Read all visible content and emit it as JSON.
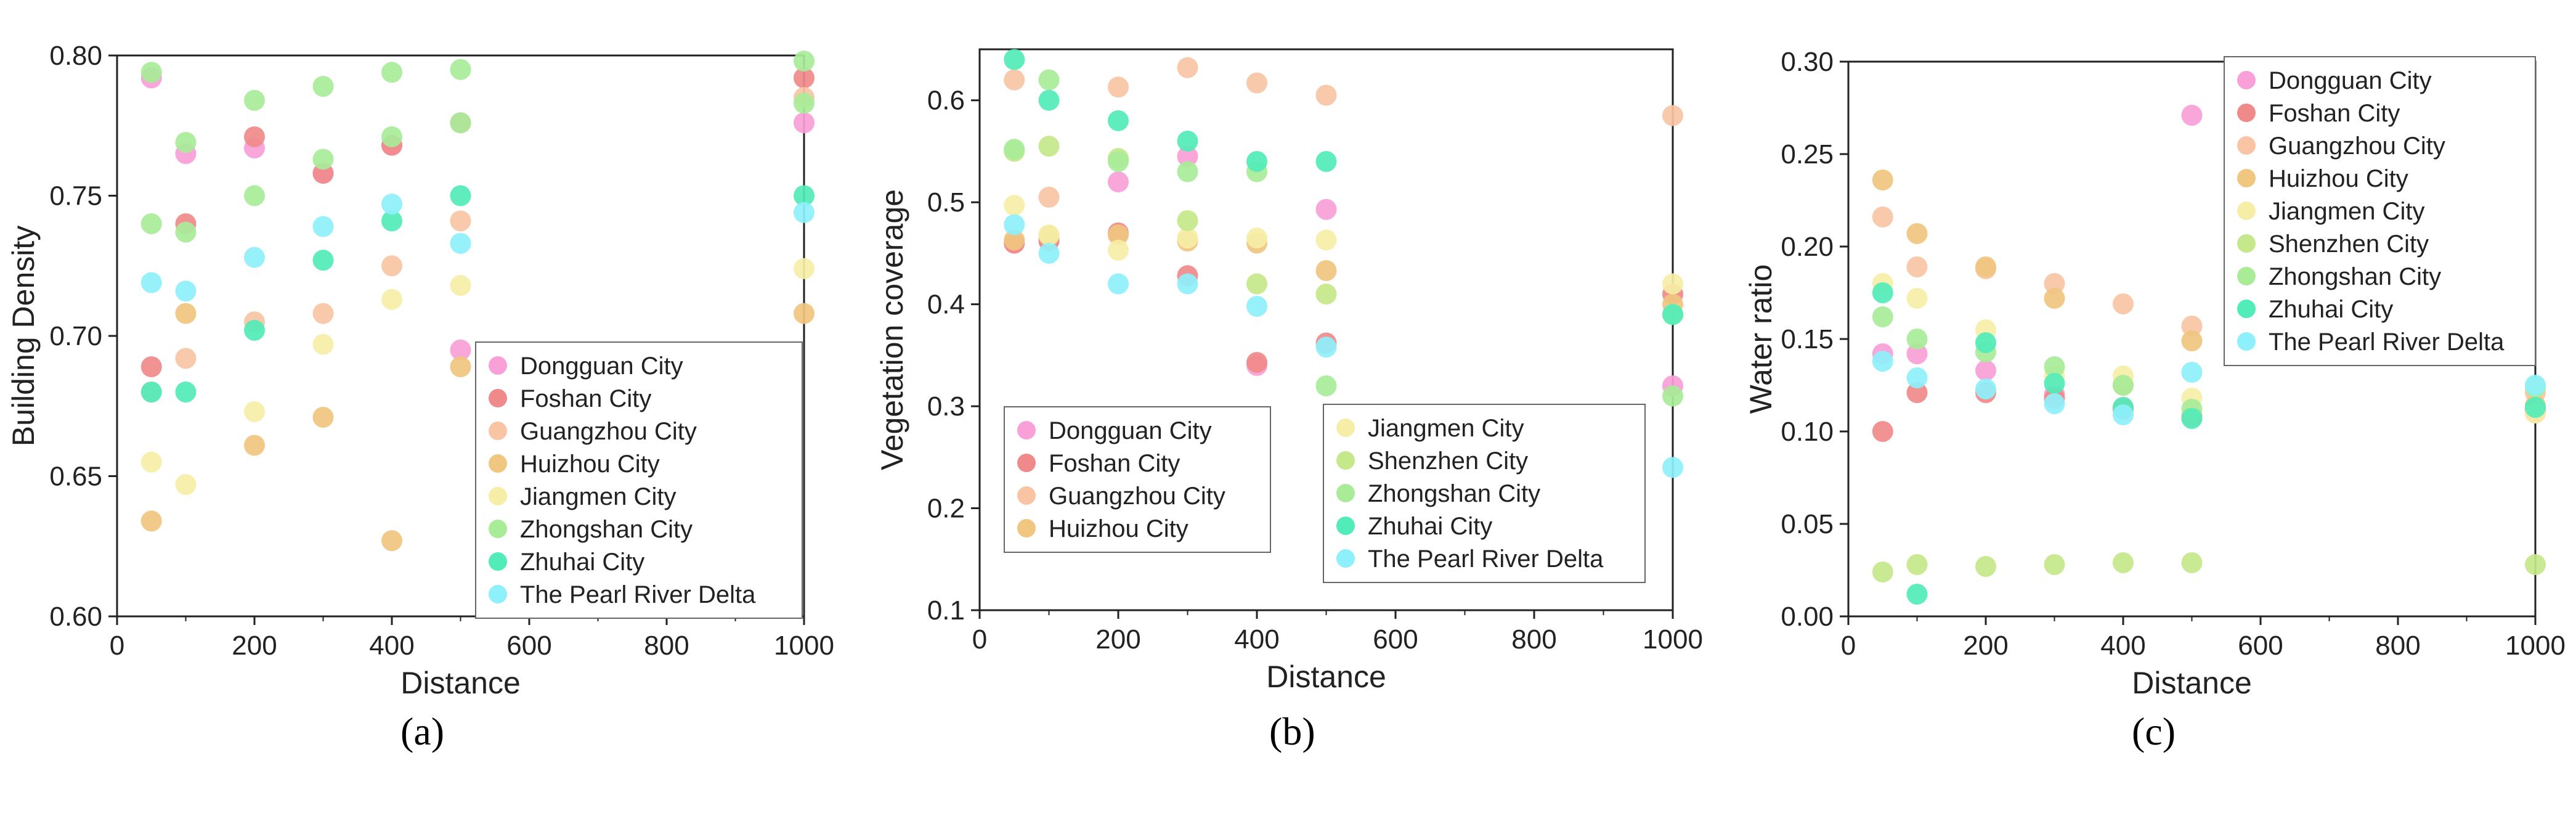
{
  "palette": {
    "Dongguan City": "#f9a0d8",
    "Foshan City": "#f08a8a",
    "Guangzhou City": "#f9c4a4",
    "Huizhou City": "#f0c680",
    "Jiangmen City": "#f6eea6",
    "Shenzhen City": "#c4e88a",
    "Zhongshan City": "#a8ec98",
    "Zhuhai City": "#52ecb8",
    "The Pearl River Delta": "#8ef0fa"
  },
  "chart_data": [
    {
      "id": "a",
      "type": "scatter",
      "caption": "(a)",
      "xlabel": "Distance",
      "ylabel": "Building Density",
      "xlim": [
        0,
        1000
      ],
      "ylim": [
        0.6,
        0.8
      ],
      "xticks": [
        "0",
        "200",
        "400",
        "600",
        "800",
        "1000"
      ],
      "yticks": [
        "0.60",
        "0.65",
        "0.70",
        "0.75",
        "0.80"
      ],
      "x": [
        50,
        100,
        200,
        300,
        400,
        500,
        1000
      ],
      "legend": {
        "position": "lower-right",
        "columns": 1
      },
      "series": [
        {
          "name": "Dongguan City",
          "values": [
            0.792,
            0.765,
            0.767,
            0.758,
            0.768,
            0.695,
            0.776
          ]
        },
        {
          "name": "Foshan City",
          "values": [
            0.689,
            0.74,
            0.771,
            0.758,
            0.768,
            0.776,
            0.792
          ]
        },
        {
          "name": "Guangzhou City",
          "values": [
            0.68,
            0.692,
            0.705,
            0.708,
            0.725,
            0.741,
            0.785
          ]
        },
        {
          "name": "Huizhou City",
          "values": [
            0.634,
            0.708,
            0.661,
            0.671,
            0.627,
            0.689,
            0.708
          ]
        },
        {
          "name": "Jiangmen City",
          "values": [
            0.655,
            0.647,
            0.673,
            0.697,
            0.713,
            0.718,
            0.724
          ]
        },
        {
          "name": "Zhongshan City",
          "values": [
            0.74,
            0.737,
            0.75,
            0.763,
            0.771,
            0.776,
            0.783
          ]
        },
        {
          "name": "Zhuhai City",
          "values": [
            0.68,
            0.68,
            0.702,
            0.727,
            0.741,
            0.75,
            0.75
          ]
        },
        {
          "name": "The Pearl River Delta",
          "values": [
            0.719,
            0.716,
            0.728,
            0.739,
            0.747,
            0.733,
            0.744
          ]
        },
        {
          "name": "Zhongshan City",
          "values": [
            0.794,
            0.769,
            0.784,
            0.789,
            0.794,
            0.795,
            0.798
          ],
          "legend": false
        }
      ]
    },
    {
      "id": "b",
      "type": "scatter",
      "caption": "(b)",
      "xlabel": "Distance",
      "ylabel": "Vegetation coverage",
      "xlim": [
        0,
        1000
      ],
      "ylim": [
        0.1,
        0.65
      ],
      "xticks": [
        "0",
        "200",
        "400",
        "600",
        "800",
        "1000"
      ],
      "yticks": [
        "0.1",
        "0.2",
        "0.3",
        "0.4",
        "0.5",
        "0.6"
      ],
      "x": [
        50,
        100,
        200,
        300,
        400,
        500,
        1000
      ],
      "legend": {
        "position": "lower-center",
        "columns": 2
      },
      "series": [
        {
          "name": "Dongguan City",
          "values": [
            0.46,
            0.463,
            0.52,
            0.545,
            0.34,
            0.493,
            0.32
          ]
        },
        {
          "name": "Foshan City",
          "values": [
            0.46,
            0.462,
            0.47,
            0.428,
            0.343,
            0.362,
            0.41
          ]
        },
        {
          "name": "Guangzhou City",
          "values": [
            0.62,
            0.505,
            0.613,
            0.632,
            0.617,
            0.605,
            0.585
          ]
        },
        {
          "name": "Huizhou City",
          "values": [
            0.463,
            0.467,
            0.468,
            0.462,
            0.46,
            0.433,
            0.4
          ]
        },
        {
          "name": "Jiangmen City",
          "values": [
            0.497,
            0.468,
            0.453,
            0.465,
            0.465,
            0.463,
            0.42
          ]
        },
        {
          "name": "Shenzhen City",
          "values": [
            0.55,
            0.555,
            0.543,
            0.482,
            0.42,
            0.41,
            0.39
          ]
        },
        {
          "name": "Zhongshan City",
          "values": [
            0.552,
            0.62,
            0.54,
            0.53,
            0.53,
            0.32,
            0.31
          ]
        },
        {
          "name": "Zhuhai City",
          "values": [
            0.64,
            0.6,
            0.58,
            0.56,
            0.54,
            0.54,
            0.39
          ]
        },
        {
          "name": "The Pearl River Delta",
          "values": [
            0.478,
            0.45,
            0.42,
            0.42,
            0.398,
            0.358,
            0.24
          ]
        }
      ]
    },
    {
      "id": "c",
      "type": "scatter",
      "caption": "(c)",
      "xlabel": "Distance",
      "ylabel": "Water ratio",
      "xlim": [
        0,
        1000
      ],
      "ylim": [
        0.0,
        0.3
      ],
      "xticks": [
        "0",
        "200",
        "400",
        "600",
        "800",
        "1000"
      ],
      "yticks": [
        "0.00",
        "0.05",
        "0.10",
        "0.15",
        "0.20",
        "0.25",
        "0.30"
      ],
      "x": [
        50,
        100,
        200,
        300,
        400,
        500,
        1000
      ],
      "legend": {
        "position": "top-right",
        "columns": 1
      },
      "series": [
        {
          "name": "Dongguan City",
          "values": [
            0.142,
            0.142,
            0.133,
            0.12,
            0.113,
            0.271,
            0.11
          ]
        },
        {
          "name": "Foshan City",
          "values": [
            0.1,
            0.121,
            0.121,
            0.118,
            0.112,
            0.108,
            0.112
          ]
        },
        {
          "name": "Guangzhou City",
          "values": [
            0.216,
            0.189,
            0.188,
            0.18,
            0.169,
            0.157,
            0.121
          ]
        },
        {
          "name": "Huizhou City",
          "values": [
            0.236,
            0.207,
            0.189,
            0.172,
            0.125,
            0.149,
            0.114
          ]
        },
        {
          "name": "Jiangmen City",
          "values": [
            0.18,
            0.172,
            0.155,
            0.13,
            0.13,
            0.118,
            0.11
          ]
        },
        {
          "name": "Shenzhen City",
          "values": [
            0.024,
            0.028,
            0.027,
            0.028,
            0.029,
            0.029,
            0.028
          ]
        },
        {
          "name": "Zhongshan City",
          "values": [
            0.162,
            0.15,
            0.143,
            0.135,
            0.125,
            0.112,
            0.124
          ]
        },
        {
          "name": "Zhuhai City",
          "values": [
            0.175,
            0.012,
            0.148,
            0.126,
            0.113,
            0.107,
            0.113
          ]
        },
        {
          "name": "The Pearl River Delta",
          "values": [
            0.138,
            0.129,
            0.123,
            0.115,
            0.109,
            0.132,
            0.125
          ]
        }
      ]
    }
  ]
}
